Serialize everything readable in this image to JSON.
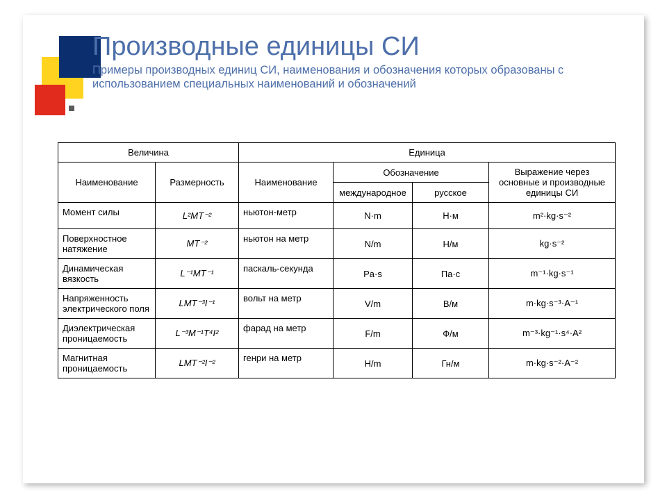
{
  "title": "Производные единицы СИ",
  "subtitle": "Примеры производных единиц СИ, наименования и обозначения которых образованы с использованием специальных наименований и обозначений",
  "colors": {
    "title": "#4d6faa",
    "sq_yellow": "#ffd320",
    "sq_blue": "#0b2e6f",
    "sq_red": "#e02b1d",
    "border": "#000000",
    "bg": "#ffffff"
  },
  "table": {
    "header": {
      "velichina": "Величина",
      "edinitsa": "Единица",
      "naimenovanie": "Наименование",
      "razmernost": "Размерность",
      "oboznachenie": "Обозначение",
      "intl": "международное",
      "rus": "русское",
      "vyrazhenie": "Выражение через основные и производные единицы СИ"
    },
    "rows": [
      {
        "name": "Момент силы",
        "dim": "L²MT⁻²",
        "unit": "ньютон-метр",
        "intl": "N·m",
        "rus": "Н·м",
        "expr": "m²·kg·s⁻²"
      },
      {
        "name": "Поверхностное натяжение",
        "dim": "MT⁻²",
        "unit": "ньютон на метр",
        "intl": "N/m",
        "rus": "Н/м",
        "expr": "kg·s⁻²"
      },
      {
        "name": "Динамическая вязкость",
        "dim": "L⁻¹MT⁻¹",
        "unit": "паскаль-секунда",
        "intl": "Pa·s",
        "rus": "Па·с",
        "expr": "m⁻¹·kg·s⁻¹"
      },
      {
        "name": "Напряженность электрического поля",
        "dim": "LMT⁻³I⁻¹",
        "unit": "вольт на метр",
        "intl": "V/m",
        "rus": "В/м",
        "expr": "m·kg·s⁻³·A⁻¹"
      },
      {
        "name": "Диэлектрическая проницаемость",
        "dim": "L⁻³M⁻¹T⁴I²",
        "unit": "фарад на метр",
        "intl": "F/m",
        "rus": "Ф/м",
        "expr": "m⁻³·kg⁻¹·s⁴·A²"
      },
      {
        "name": "Магнитная проницаемость",
        "dim": "LMT⁻²I⁻²",
        "unit": "генри на метр",
        "intl": "H/m",
        "rus": "Гн/м",
        "expr": "m·kg·s⁻²·A⁻²"
      }
    ]
  }
}
